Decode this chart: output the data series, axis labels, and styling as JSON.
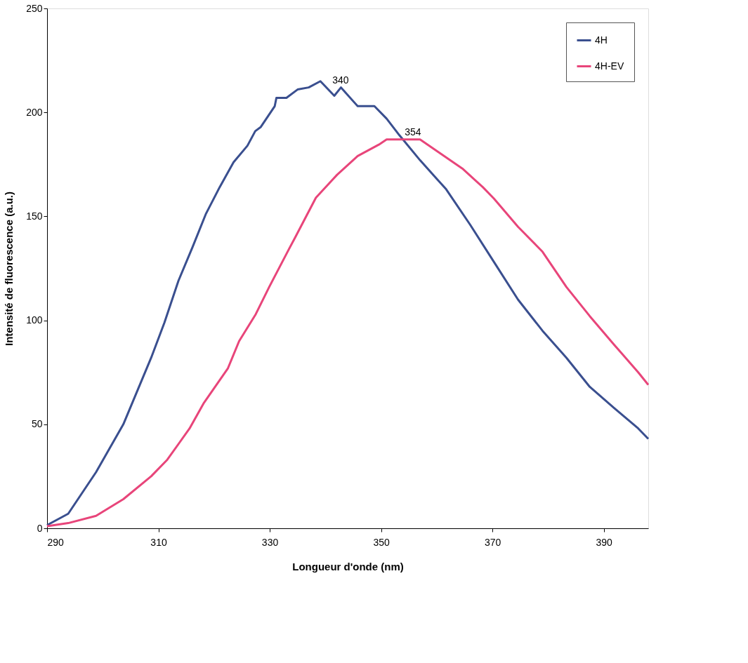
{
  "chart_data": {
    "type": "line",
    "xlabel": "Longueur d'onde (nm)",
    "ylabel": "Intensité de fluorescence (a.u.)",
    "xlim": [
      290,
      398
    ],
    "xticks": [
      290,
      310,
      330,
      350,
      370,
      390
    ],
    "ylim": [
      0,
      250
    ],
    "yticks": [
      0,
      50,
      100,
      150,
      200,
      250
    ],
    "grid": false,
    "legend": "top right",
    "marker": "none",
    "line_style": "solid",
    "annotations": [
      {
        "text": "340",
        "x": 341,
        "y": 212
      },
      {
        "text": "354",
        "x": 354,
        "y": 187
      }
    ],
    "series": [
      {
        "name": "4H",
        "color": "#3a4f8f",
        "x": [
          290,
          293.8,
          298.8,
          303.7,
          308.7,
          311.1,
          313.6,
          316.1,
          318.5,
          321,
          323.5,
          326,
          327.4,
          328.4,
          330.9,
          331.2,
          333,
          335,
          337,
          339.1,
          341.6,
          342.8,
          345.8,
          348.8,
          351,
          353.3,
          357,
          361.7,
          366,
          370.3,
          374.6,
          379,
          383.3,
          387.5,
          391.8,
          396.2,
          398
        ],
        "values": [
          1.5,
          7,
          27,
          50,
          82,
          99,
          119,
          135,
          151,
          164,
          176,
          184,
          191,
          193,
          203,
          207,
          207,
          211,
          212,
          215,
          208,
          212,
          203,
          203,
          197,
          189,
          177,
          163,
          146,
          128,
          110,
          95,
          82,
          68,
          58,
          48,
          43
        ]
      },
      {
        "name": "4H-EV",
        "color": "#e8457a",
        "x": [
          290,
          293.8,
          298.8,
          303.7,
          308.7,
          311.6,
          315.6,
          318.1,
          322.5,
          324.5,
          327.5,
          329.9,
          333.4,
          334.6,
          338.3,
          342.1,
          345.8,
          349.6,
          351,
          357,
          360.8,
          364.6,
          368.3,
          370.3,
          374.6,
          379,
          383.3,
          387.5,
          391.8,
          396.2,
          398
        ],
        "values": [
          1,
          2.5,
          6,
          14,
          25,
          33,
          48,
          60,
          77,
          90,
          103,
          116,
          134,
          140,
          159,
          170,
          179,
          184.5,
          187,
          187,
          180,
          173,
          164,
          158.5,
          145,
          133,
          116,
          102,
          88.5,
          75,
          69
        ]
      }
    ]
  }
}
